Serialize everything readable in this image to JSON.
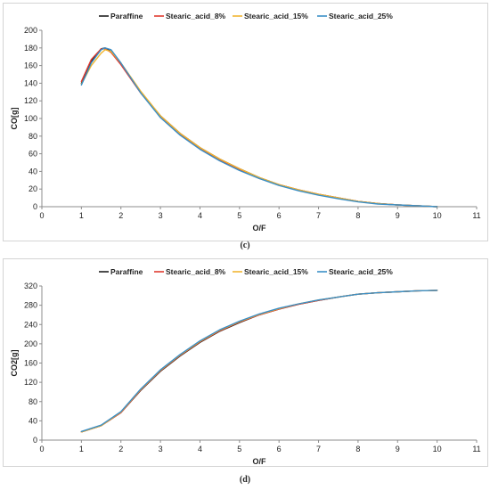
{
  "legend": [
    "Paraffine",
    "Stearic_acid_8%",
    "Stearic_acid_15%",
    "Stearic_acid_25%"
  ],
  "colors": {
    "Paraffine": "#1f1f1f",
    "Stearic_acid_8%": "#e03a2f",
    "Stearic_acid_15%": "#f2b632",
    "Stearic_acid_25%": "#3a8fc7"
  },
  "captions": {
    "c": "(c)",
    "d": "(d)"
  },
  "chart_data": [
    {
      "type": "line",
      "title": "",
      "xlabel": "O/F",
      "ylabel": "CO[g]",
      "xlim": [
        0,
        11
      ],
      "ylim": [
        0,
        200
      ],
      "xticks": [
        0,
        1,
        2,
        3,
        4,
        5,
        6,
        7,
        8,
        9,
        10,
        11
      ],
      "yticks": [
        0,
        20,
        40,
        60,
        80,
        100,
        120,
        140,
        160,
        180,
        200
      ],
      "legend_position": "top",
      "grid": false,
      "series": [
        {
          "name": "Paraffine",
          "x": [
            1,
            1.25,
            1.5,
            1.6,
            1.75,
            2,
            2.5,
            3,
            3.5,
            4,
            4.5,
            5,
            5.5,
            6,
            6.5,
            7,
            7.5,
            8,
            8.5,
            9,
            9.5,
            10
          ],
          "y": [
            140,
            165,
            179,
            180,
            176,
            162,
            130,
            103,
            83,
            67,
            54,
            43,
            33,
            25,
            19,
            14,
            10,
            6,
            3.5,
            2,
            1,
            0
          ]
        },
        {
          "name": "Stearic_acid_8%",
          "x": [
            1,
            1.25,
            1.5,
            1.6,
            1.75,
            2,
            2.5,
            3,
            3.5,
            4,
            4.5,
            5,
            5.5,
            6,
            6.5,
            7,
            7.5,
            8,
            8.5,
            9,
            9.5,
            10
          ],
          "y": [
            142,
            167,
            179,
            179,
            175,
            161,
            129,
            102,
            82,
            66,
            53,
            42,
            32,
            25,
            19,
            14,
            10,
            6,
            3.5,
            2,
            1,
            0
          ]
        },
        {
          "name": "Stearic_acid_15%",
          "x": [
            1,
            1.25,
            1.5,
            1.6,
            1.75,
            2,
            2.5,
            3,
            3.5,
            4,
            4.5,
            5,
            5.5,
            6,
            6.5,
            7,
            7.5,
            8,
            8.5,
            9,
            9.5,
            10
          ],
          "y": [
            139,
            160,
            174,
            178,
            176,
            163,
            131,
            103,
            83,
            67,
            54,
            43,
            33,
            25,
            19,
            14,
            10,
            6,
            3.5,
            2,
            1,
            0
          ]
        },
        {
          "name": "Stearic_acid_25%",
          "x": [
            1,
            1.25,
            1.5,
            1.6,
            1.75,
            2,
            2.5,
            3,
            3.5,
            4,
            4.5,
            5,
            5.5,
            6,
            6.5,
            7,
            7.5,
            8,
            8.5,
            9,
            9.5,
            10
          ],
          "y": [
            138,
            163,
            178,
            180,
            178,
            163,
            129,
            101,
            81,
            65,
            52,
            41,
            32,
            24,
            18,
            13,
            9,
            5.5,
            3,
            2,
            1,
            0
          ]
        }
      ]
    },
    {
      "type": "line",
      "title": "",
      "xlabel": "O/F",
      "ylabel": "CO2[g]",
      "xlim": [
        0,
        11
      ],
      "ylim": [
        0,
        320
      ],
      "xticks": [
        0,
        1,
        2,
        3,
        4,
        5,
        6,
        7,
        8,
        9,
        10,
        11
      ],
      "yticks": [
        0,
        40,
        80,
        120,
        160,
        200,
        240,
        280,
        320
      ],
      "legend_position": "top",
      "grid": false,
      "series": [
        {
          "name": "Paraffine",
          "x": [
            1,
            1.5,
            2,
            2.5,
            3,
            3.5,
            4,
            4.5,
            5,
            5.5,
            6,
            6.5,
            7,
            7.5,
            8,
            8.5,
            9,
            9.5,
            10
          ],
          "y": [
            17,
            30,
            57,
            103,
            143,
            175,
            203,
            226,
            244,
            260,
            272,
            282,
            290,
            297,
            303,
            306,
            308,
            310,
            311
          ]
        },
        {
          "name": "Stearic_acid_8%",
          "x": [
            1,
            1.5,
            2,
            2.5,
            3,
            3.5,
            4,
            4.5,
            5,
            5.5,
            6,
            6.5,
            7,
            7.5,
            8,
            8.5,
            9,
            9.5,
            10
          ],
          "y": [
            17,
            30,
            57,
            104,
            144,
            176,
            204,
            227,
            245,
            260,
            272,
            282,
            290,
            297,
            303,
            306,
            308,
            310,
            311
          ]
        },
        {
          "name": "Stearic_acid_15%",
          "x": [
            1,
            1.5,
            2,
            2.5,
            3,
            3.5,
            4,
            4.5,
            5,
            5.5,
            6,
            6.5,
            7,
            7.5,
            8,
            8.5,
            9,
            9.5,
            10
          ],
          "y": [
            17,
            30,
            58,
            105,
            145,
            177,
            205,
            228,
            246,
            261,
            273,
            283,
            291,
            297,
            303,
            306,
            308,
            310,
            311
          ]
        },
        {
          "name": "Stearic_acid_25%",
          "x": [
            1,
            1.5,
            2,
            2.5,
            3,
            3.5,
            4,
            4.5,
            5,
            5.5,
            6,
            6.5,
            7,
            7.5,
            8,
            8.5,
            9,
            9.5,
            10
          ],
          "y": [
            18,
            31,
            59,
            106,
            146,
            178,
            206,
            229,
            247,
            262,
            274,
            283,
            291,
            297,
            303,
            306,
            308,
            310,
            311
          ]
        }
      ]
    }
  ]
}
